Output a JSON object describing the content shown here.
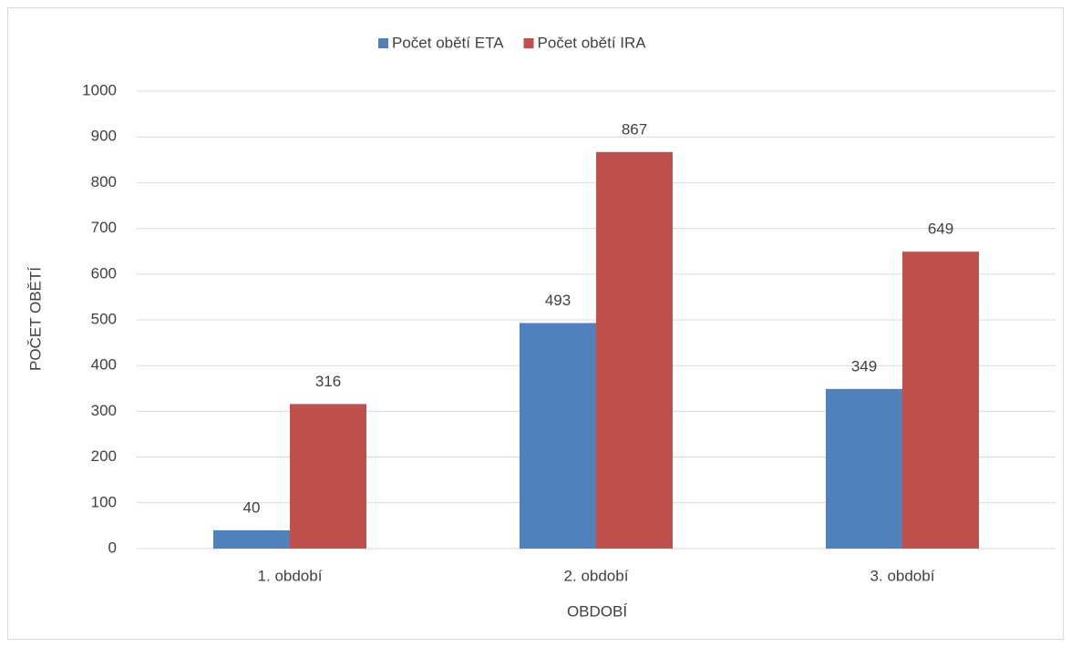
{
  "chart_data": {
    "type": "bar",
    "categories": [
      "1. období",
      "2. období",
      "3. období"
    ],
    "series": [
      {
        "name": "Počet obětí ETA",
        "color": "#4f81bd",
        "values": [
          40,
          493,
          349
        ]
      },
      {
        "name": "Počet obětí IRA",
        "color": "#c0504d",
        "values": [
          316,
          867,
          649
        ]
      }
    ],
    "x_label": "OBDOBÍ",
    "y_label": "POČET OBĚTÍ",
    "ylim": [
      0,
      1000
    ],
    "yticks": [
      0,
      100,
      200,
      300,
      400,
      500,
      600,
      700,
      800,
      900,
      1000
    ],
    "grid": true,
    "legend": "top"
  }
}
